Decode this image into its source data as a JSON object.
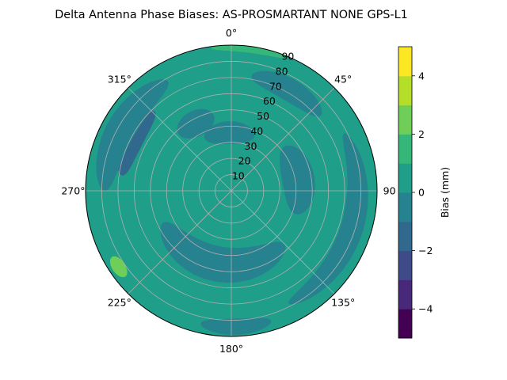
{
  "chart_data": {
    "type": "polar-contour",
    "title": "Delta Antenna Phase Biases: AS-PROSMARTANT  NONE GPS-L1",
    "angular_ticks": [
      {
        "deg": 0,
        "label": "0°"
      },
      {
        "deg": 45,
        "label": "45°"
      },
      {
        "deg": 90,
        "label": "90"
      },
      {
        "deg": 135,
        "label": "135°"
      },
      {
        "deg": 180,
        "label": "180°"
      },
      {
        "deg": 225,
        "label": "225°"
      },
      {
        "deg": 270,
        "label": "270°"
      },
      {
        "deg": 315,
        "label": "315°"
      }
    ],
    "radial_ticks": [
      10,
      20,
      30,
      40,
      50,
      60,
      70,
      80,
      90
    ],
    "radial_range": [
      0,
      90
    ],
    "grid": true,
    "colorbar": {
      "label": "Bias (mm)",
      "range": [
        -5,
        5
      ],
      "levels": [
        -5,
        -4,
        -3,
        -2,
        -1,
        0,
        1,
        2,
        3,
        4,
        5
      ],
      "ticks": [
        -4,
        -2,
        0,
        2,
        4
      ],
      "colors": [
        "#440154",
        "#482878",
        "#3e4a89",
        "#31688e",
        "#26828e",
        "#1f9e89",
        "#35b779",
        "#6ece58",
        "#b5de2b",
        "#fde725"
      ]
    },
    "background_level": [
      0,
      1
    ],
    "regions": [
      {
        "level": [
          -1,
          0
        ],
        "center": [
          358,
          36
        ],
        "angular_width": 50,
        "radial_width": 14
      },
      {
        "level": [
          -1,
          0
        ],
        "center": [
          332,
          47
        ],
        "angular_width": 30,
        "radial_width": 16
      },
      {
        "level": [
          -2,
          -1
        ],
        "center": [
          297,
          68
        ],
        "angular_width": 38,
        "radial_width": 12
      },
      {
        "level": [
          -1,
          0
        ],
        "center": [
          300,
          78
        ],
        "angular_width": 60,
        "radial_width": 18
      },
      {
        "level": [
          -1,
          0
        ],
        "center": [
          30,
          72
        ],
        "angular_width": 40,
        "radial_width": 14
      },
      {
        "level": [
          -1,
          0
        ],
        "center": [
          108,
          78
        ],
        "angular_width": 90,
        "radial_width": 14
      },
      {
        "level": [
          -1,
          0
        ],
        "center": [
          190,
          46
        ],
        "angular_width": 110,
        "radial_width": 22
      },
      {
        "level": [
          -1,
          0
        ],
        "center": [
          80,
          42
        ],
        "angular_width": 60,
        "radial_width": 20
      },
      {
        "level": [
          -1,
          0
        ],
        "center": [
          178,
          84
        ],
        "angular_width": 30,
        "radial_width": 10
      },
      {
        "level": [
          1,
          2
        ],
        "center": [
          7,
          89
        ],
        "angular_width": 30,
        "radial_width": 6
      },
      {
        "level": [
          2,
          3
        ],
        "center": [
          236,
          84
        ],
        "angular_width": 10,
        "radial_width": 8
      }
    ]
  }
}
